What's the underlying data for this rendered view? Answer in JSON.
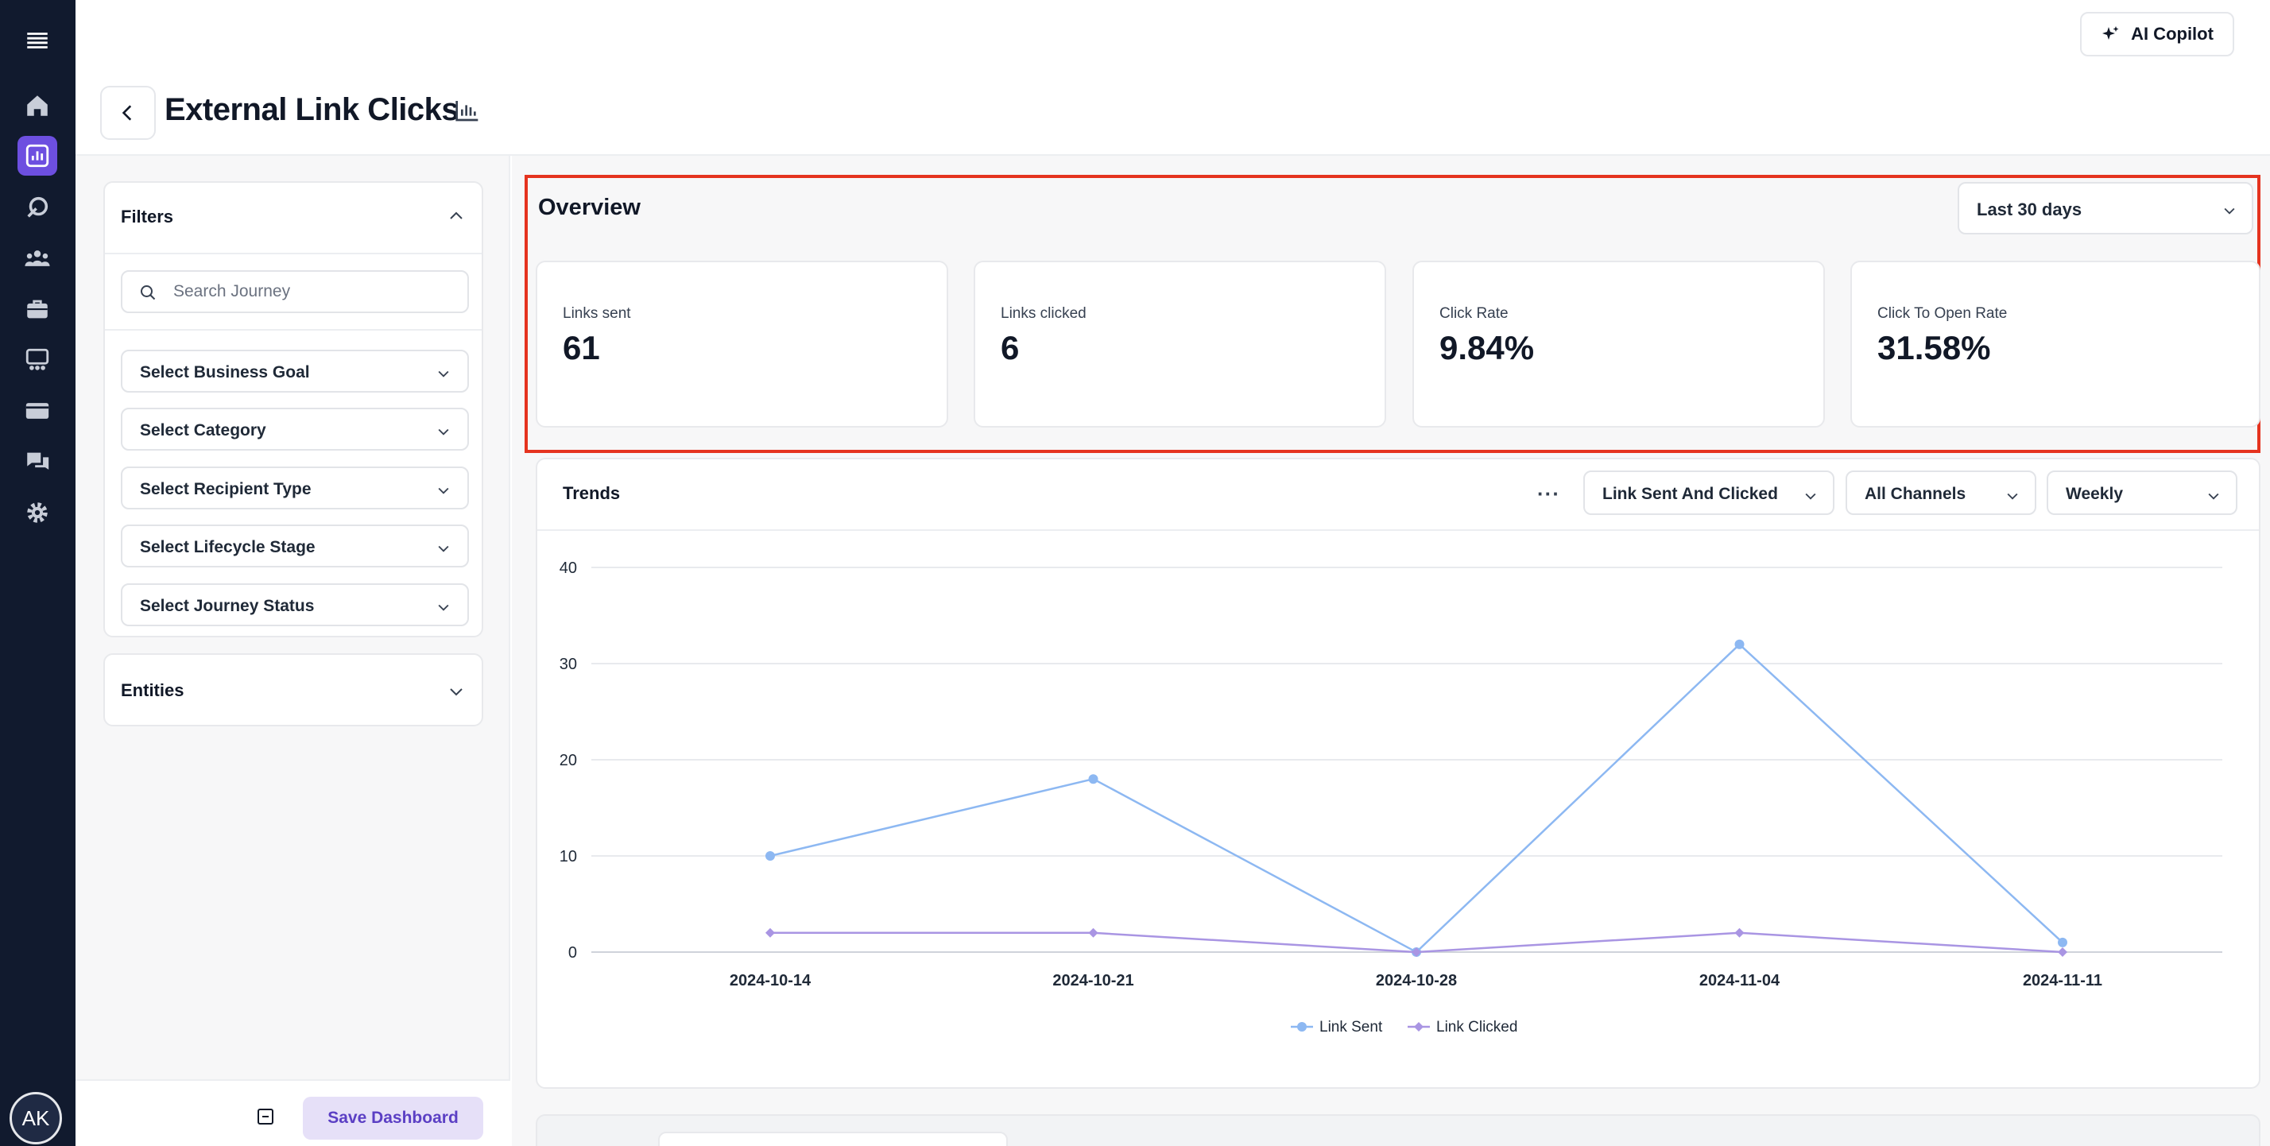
{
  "header": {
    "title": "External Link Clicks",
    "copilot_label": "AI Copilot"
  },
  "nav": {
    "icons": [
      "menu-icon",
      "home-icon",
      "analytics-icon",
      "journey-icon",
      "audience-icon",
      "briefcase-icon",
      "segments-icon",
      "billing-icon",
      "chat-icon",
      "settings-icon"
    ],
    "active": "analytics-icon",
    "avatar_initials": "AK",
    "accent_color": "#6d4fe0",
    "rail_color": "#111a2e"
  },
  "filters": {
    "title": "Filters",
    "search_placeholder": "Search Journey",
    "selects": [
      {
        "label": "Select Business Goal"
      },
      {
        "label": "Select Category"
      },
      {
        "label": "Select Recipient Type"
      },
      {
        "label": "Select Lifecycle Stage"
      },
      {
        "label": "Select Journey Status"
      }
    ],
    "entities_title": "Entities",
    "save_label": "Save Dashboard"
  },
  "overview": {
    "title": "Overview",
    "range": "Last 30 days",
    "stats": [
      {
        "label": "Links sent",
        "value": "61"
      },
      {
        "label": "Links clicked",
        "value": "6"
      },
      {
        "label": "Click Rate",
        "value": "9.84%"
      },
      {
        "label": "Click To Open Rate",
        "value": "31.58%"
      }
    ],
    "highlight_color": "#e5331f"
  },
  "trends": {
    "title": "Trends",
    "more_label": "···",
    "metric_select": "Link Sent And Clicked",
    "channel_select": "All Channels",
    "interval_select": "Weekly"
  },
  "chart_data": {
    "type": "line",
    "x": [
      "2024-10-14",
      "2024-10-21",
      "2024-10-28",
      "2024-11-04",
      "2024-11-11"
    ],
    "series": [
      {
        "name": "Link Sent",
        "values": [
          10,
          18,
          0,
          32,
          1
        ],
        "color": "#8db8f2",
        "marker": "circle"
      },
      {
        "name": "Link Clicked",
        "values": [
          2,
          2,
          0,
          2,
          0
        ],
        "color": "#a995e3",
        "marker": "diamond"
      }
    ],
    "yticks": [
      "0",
      "10",
      "20",
      "30",
      "40"
    ],
    "ylim": [
      0,
      40
    ],
    "grid": true,
    "legend": "bottom-center"
  }
}
